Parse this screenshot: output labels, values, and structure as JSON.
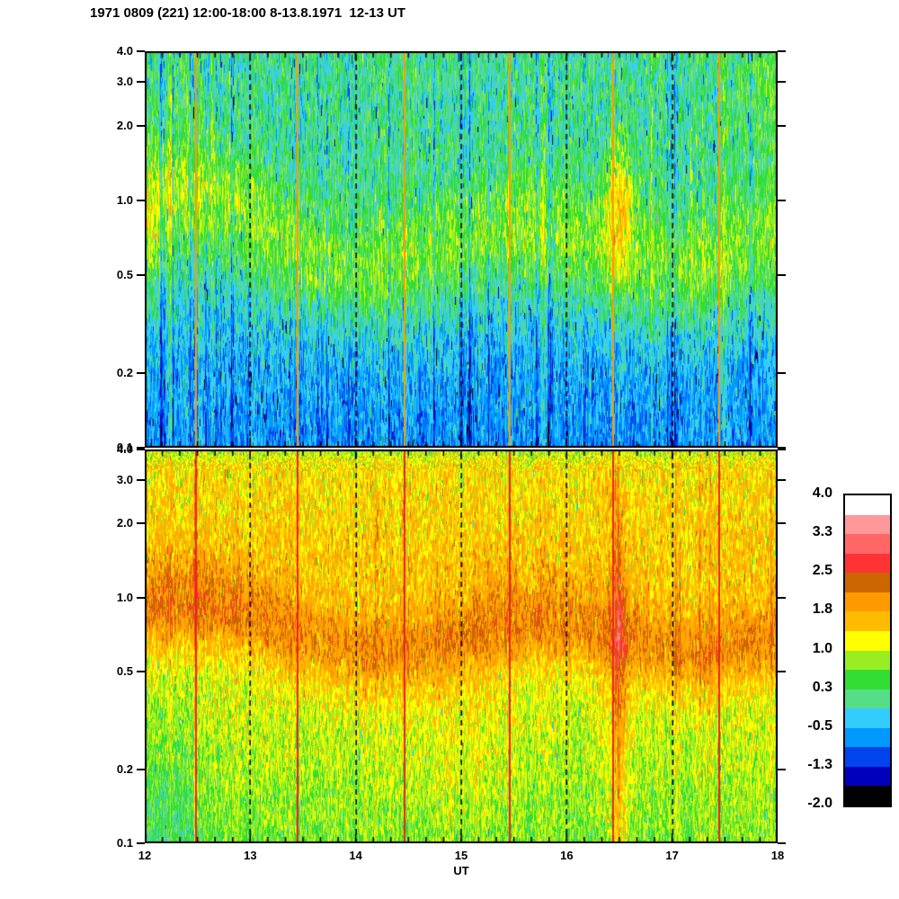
{
  "title": "1971 0809 (221) 12:00-18:00 8-13.8.1971  12-13 UT",
  "chart_data": {
    "type": "heatmap",
    "title": "1971 0809 (221) 12:00-18:00 8-13.8.1971  12-13 UT",
    "xlabel": "UT",
    "ylabel": "",
    "x_range": [
      12,
      18
    ],
    "x_tick_labels": [
      "12",
      "13",
      "14",
      "15",
      "16",
      "17",
      "18"
    ],
    "x_major_ticks": [
      12,
      13,
      14,
      15,
      16,
      17,
      18
    ],
    "x_minor_ticks_per_hour": 6,
    "y_scale": "log",
    "y_range": [
      0.1,
      4.0
    ],
    "y_ticks": [
      4.0,
      3.0,
      2.0,
      1.0,
      0.5,
      0.2,
      0.1
    ],
    "y_tick_labels": [
      "4.0",
      "3.0",
      "2.0",
      "1.0",
      "0.5",
      "0.2",
      "0.1"
    ],
    "hour_gridlines_dashed": [
      13,
      14,
      15,
      16,
      17
    ],
    "calibration_line_times_ut": [
      12.49,
      13.45,
      14.46,
      15.46,
      16.44,
      17.45
    ],
    "colorbar": {
      "tick_labels": [
        "4.0",
        "3.3",
        "2.5",
        "1.8",
        "1.0",
        "0.3",
        "-0.5",
        "-1.3",
        "-2.0"
      ],
      "tick_values": [
        4.0,
        3.25,
        2.5,
        1.75,
        1.0,
        0.25,
        -0.5,
        -1.25,
        -2.0
      ],
      "range": [
        -2.0,
        4.0
      ],
      "segments": 16,
      "colors_low_to_high": [
        "#000000",
        "#0000bb",
        "#0044ee",
        "#0099ff",
        "#33ccff",
        "#55dd88",
        "#33dd33",
        "#99ee22",
        "#ffff00",
        "#ffbb00",
        "#ff9900",
        "#cc6600",
        "#ff3333",
        "#ff6666",
        "#ff9999",
        "#ffffff"
      ]
    },
    "noise_seed": 19710809,
    "panels": [
      {
        "id": "top",
        "description": "Upper spectrogram 12-18 UT: green/cyan noisy mix at high values, wavy yellow-green enhancement band near 0.5-1.0, cyan/blue dominated below 0.4; orange calibration lines each hour at ~:27.",
        "line_color": "#ff9900",
        "profile": [
          [
            0,
            0.12,
            0.55
          ],
          [
            0.35,
            0.05,
            0.5
          ],
          [
            0.55,
            -0.1,
            0.5
          ],
          [
            0.8,
            -0.5,
            0.48
          ],
          [
            1,
            -0.68,
            0.42
          ]
        ],
        "band": {
          "amp": 0.75,
          "sigma": 0.17,
          "center_base": -0.2,
          "wave_amp": 0.08,
          "wave_freq": 2.2,
          "ramp_amp": 0.25,
          "ramp_span": 1.3
        },
        "blobs": [
          {
            "u": 16.5,
            "su": 0.1,
            "lv": -0.02,
            "slv": 0.18,
            "amp": 1.2
          },
          {
            "u": 12.08,
            "su": 0.08,
            "lv": -0.18,
            "slv": 0.15,
            "amp": 0.7
          },
          {
            "u": 17.9,
            "su": 0.2,
            "lv": 0.45,
            "slv": 0.2,
            "amp": 0.4
          }
        ],
        "run": [
          3,
          12
        ],
        "col_sd": 0.38,
        "dark_col_p": 0.05,
        "spike_p": 0.015,
        "top_speckle_t": 0
      },
      {
        "id": "bottom",
        "description": "Lower spectrogram 12-18 UT: orange/amber absorption above ~1.0 with fine yellow-green speckle at the very top, wavy orange band near 0.55-0.9, yellow fading to green toward 0.1; red calibration lines each hour at ~:27 and broad orange column near 16.5 UT.",
        "line_color": "#ee2222",
        "profile": [
          [
            0,
            0.85,
            0.6
          ],
          [
            0.05,
            1.35,
            0.55
          ],
          [
            0.3,
            1.5,
            0.5
          ],
          [
            0.4,
            1.3,
            0.45
          ],
          [
            0.55,
            1.05,
            0.45
          ],
          [
            0.75,
            0.95,
            0.45
          ],
          [
            1,
            0.65,
            0.45
          ]
        ],
        "band": {
          "amp": 0.85,
          "sigma": 0.13,
          "center_base": -0.17,
          "wave_amp": 0.06,
          "wave_freq": 2.1,
          "ramp_amp": 0.12,
          "ramp_span": 1.4
        },
        "blobs": [
          {
            "u": 16.5,
            "su": 0.06,
            "lv": -0.45,
            "slv": 0.55,
            "amp": 0.8
          },
          {
            "u": 12.2,
            "su": 0.25,
            "lv": -0.85,
            "slv": 0.25,
            "amp": -0.45
          },
          {
            "u": 15.0,
            "su": 0.35,
            "lv": -0.6,
            "slv": 0.3,
            "amp": 0.2
          }
        ],
        "run": [
          2,
          9
        ],
        "col_sd": 0.3,
        "dark_col_p": 0.0,
        "spike_p": 0.01,
        "top_speckle_t": 0.06
      }
    ]
  }
}
